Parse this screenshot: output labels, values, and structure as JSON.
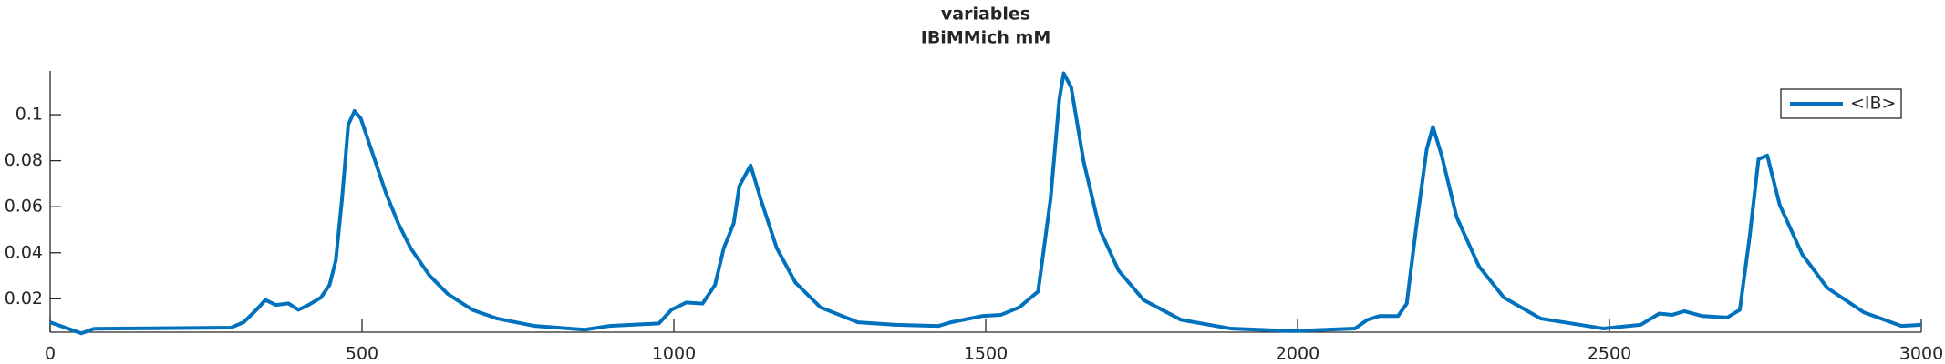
{
  "chart_data": {
    "type": "line",
    "title": "variables",
    "subtitle": "IBiMMich mM",
    "x": [
      0,
      50,
      70,
      160,
      290,
      310,
      330,
      345,
      362,
      382,
      398,
      414,
      434,
      448,
      458,
      468,
      478,
      488,
      498,
      518,
      538,
      558,
      578,
      608,
      637,
      677,
      717,
      777,
      857,
      896,
      976,
      996,
      1020,
      1046,
      1066,
      1080,
      1096,
      1105,
      1123,
      1139,
      1165,
      1195,
      1235,
      1295,
      1355,
      1424,
      1444,
      1494,
      1524,
      1554,
      1584,
      1604,
      1618,
      1625,
      1637,
      1657,
      1683,
      1713,
      1753,
      1813,
      1892,
      1992,
      2092,
      2112,
      2131,
      2161,
      2175,
      2191,
      2207,
      2217,
      2231,
      2255,
      2291,
      2331,
      2390,
      2490,
      2550,
      2580,
      2600,
      2620,
      2649,
      2689,
      2709,
      2725,
      2739,
      2753,
      2773,
      2809,
      2849,
      2908,
      2968,
      3000
    ],
    "series": [
      {
        "name": "<IB>",
        "color": "#0072bd",
        "values": [
          0.0098,
          0.005,
          0.007,
          0.0072,
          0.0075,
          0.0098,
          0.015,
          0.0195,
          0.0173,
          0.018,
          0.0152,
          0.0173,
          0.0205,
          0.026,
          0.0367,
          0.0635,
          0.0957,
          0.1016,
          0.0984,
          0.0823,
          0.0662,
          0.0528,
          0.042,
          0.0302,
          0.0222,
          0.0152,
          0.0114,
          0.0082,
          0.0066,
          0.0082,
          0.0093,
          0.0152,
          0.0184,
          0.0179,
          0.026,
          0.042,
          0.0528,
          0.069,
          0.078,
          0.0635,
          0.042,
          0.027,
          0.0163,
          0.0098,
          0.0087,
          0.0082,
          0.0098,
          0.0125,
          0.013,
          0.0163,
          0.0232,
          0.0635,
          0.1066,
          0.118,
          0.1119,
          0.0796,
          0.05,
          0.0323,
          0.0195,
          0.0109,
          0.0071,
          0.006,
          0.0071,
          0.0109,
          0.0125,
          0.0125,
          0.0179,
          0.0528,
          0.085,
          0.0947,
          0.0823,
          0.0555,
          0.034,
          0.0205,
          0.0114,
          0.0071,
          0.0087,
          0.0136,
          0.013,
          0.0146,
          0.0125,
          0.0119,
          0.0152,
          0.0474,
          0.0807,
          0.0823,
          0.0608,
          0.0394,
          0.0248,
          0.0141,
          0.0082,
          0.0087
        ]
      }
    ],
    "xlim": [
      0,
      3000
    ],
    "xticks": [
      0,
      500,
      1000,
      1500,
      2000,
      2500,
      3000
    ],
    "ylim": [
      0.0055,
      0.119
    ],
    "yticks": [
      0.02,
      0.04,
      0.06,
      0.08,
      0.1
    ],
    "legend": "top-right"
  }
}
